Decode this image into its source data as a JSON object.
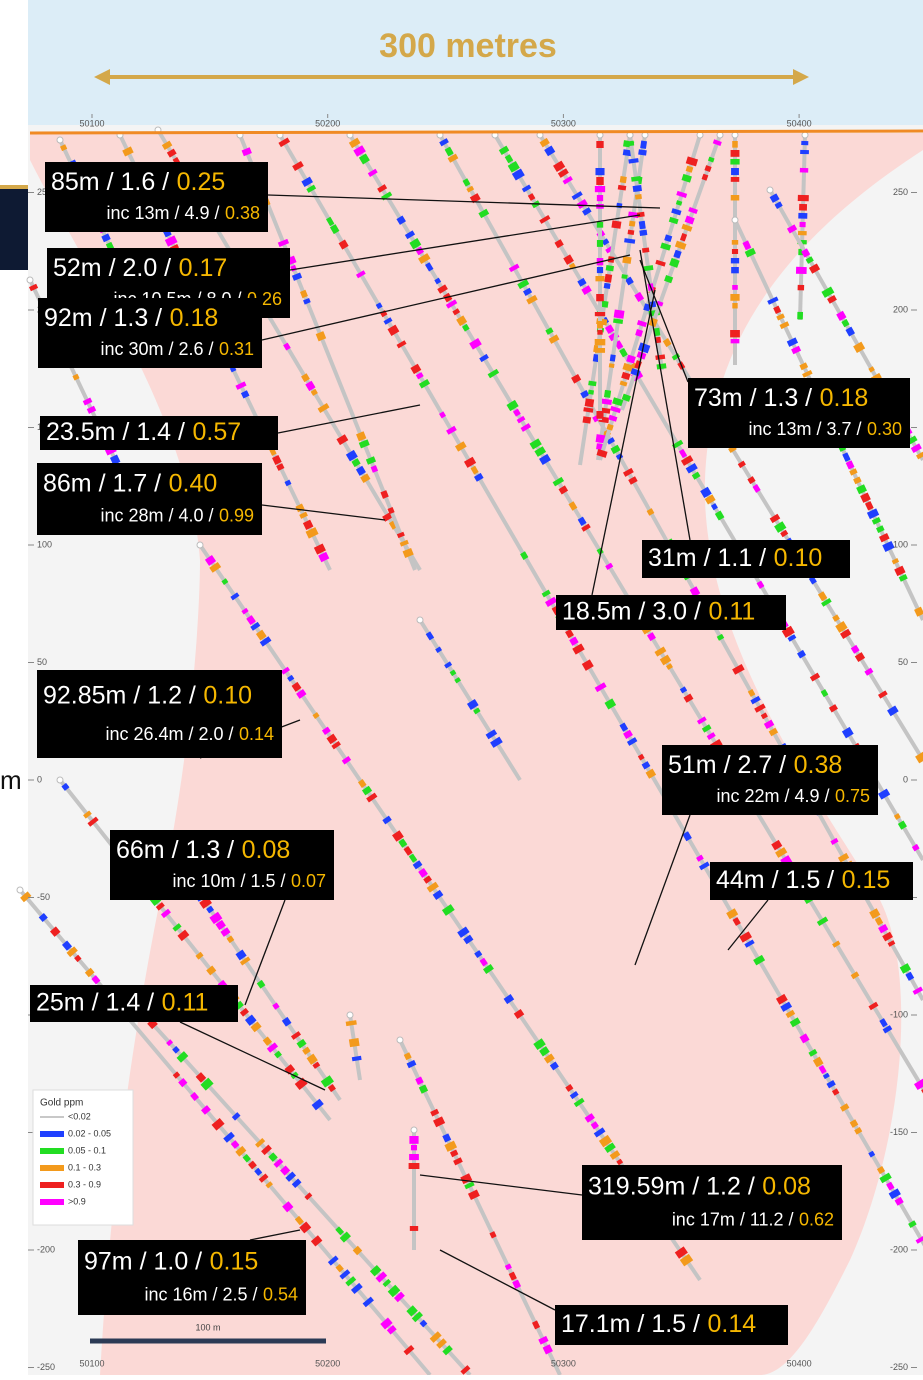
{
  "header": {
    "title": "300 metres"
  },
  "x_axis": {
    "labels": [
      50100,
      50200,
      50300,
      50400
    ]
  },
  "y_axis": {
    "labels": [
      250,
      200,
      150,
      100,
      50,
      0,
      -50,
      -100,
      -150,
      -200,
      -250
    ]
  },
  "edge_label": "m",
  "intercepts": [
    {
      "lines": [
        [
          "85m / 1.6 /",
          "0.25"
        ],
        [
          "inc 13m / 4.9 /",
          "0.38"
        ]
      ]
    },
    {
      "lines": [
        [
          "52m / 2.0 /",
          "0.17"
        ],
        [
          "inc 10.5m / 8.0 /",
          "0.26"
        ]
      ]
    },
    {
      "lines": [
        [
          "92m / 1.3 /",
          "0.18"
        ],
        [
          "inc 30m / 2.6 /",
          "0.31"
        ]
      ]
    },
    {
      "lines": [
        [
          "23.5m / 1.4 /",
          "0.57"
        ]
      ]
    },
    {
      "lines": [
        [
          "86m / 1.7 /",
          "0.40"
        ],
        [
          "inc 28m / 4.0 /",
          "0.99"
        ]
      ]
    },
    {
      "lines": [
        [
          "73m / 1.3 /",
          "0.18"
        ],
        [
          "inc 13m / 3.7 /",
          "0.30"
        ]
      ]
    },
    {
      "lines": [
        [
          "31m / 1.1 /",
          "0.10"
        ]
      ]
    },
    {
      "lines": [
        [
          "18.5m / 3.0 /",
          "0.11"
        ]
      ]
    },
    {
      "lines": [
        [
          "92.85m / 1.2 /",
          "0.10"
        ],
        [
          "inc 26.4m / 2.0 /",
          "0.14"
        ]
      ]
    },
    {
      "lines": [
        [
          "51m / 2.7 /",
          "0.38"
        ],
        [
          "inc 22m / 4.9 /",
          "0.75"
        ]
      ]
    },
    {
      "lines": [
        [
          "66m / 1.3 /",
          "0.08"
        ],
        [
          "inc 10m / 1.5 /",
          "0.07"
        ]
      ]
    },
    {
      "lines": [
        [
          "44m / 1.5 /",
          "0.15"
        ]
      ]
    },
    {
      "lines": [
        [
          "25m / 1.4 /",
          "0.11"
        ]
      ]
    },
    {
      "lines": [
        [
          "319.59m / 1.2 /",
          "0.08"
        ],
        [
          "inc 17m / 11.2 /",
          "0.62"
        ]
      ]
    },
    {
      "lines": [
        [
          "97m / 1.0 /",
          "0.15"
        ],
        [
          "inc 16m / 2.5 /",
          "0.54"
        ]
      ]
    },
    {
      "lines": [
        [
          "17.1m / 1.5 /",
          "0.14"
        ]
      ]
    }
  ],
  "legend": {
    "title": "Gold ppm",
    "items": [
      "<0.02",
      "0.02 - 0.05",
      "0.05 - 0.1",
      "0.1 - 0.3",
      "0.3 - 0.9",
      ">0.9"
    ]
  },
  "scale_bar": "100 m"
}
